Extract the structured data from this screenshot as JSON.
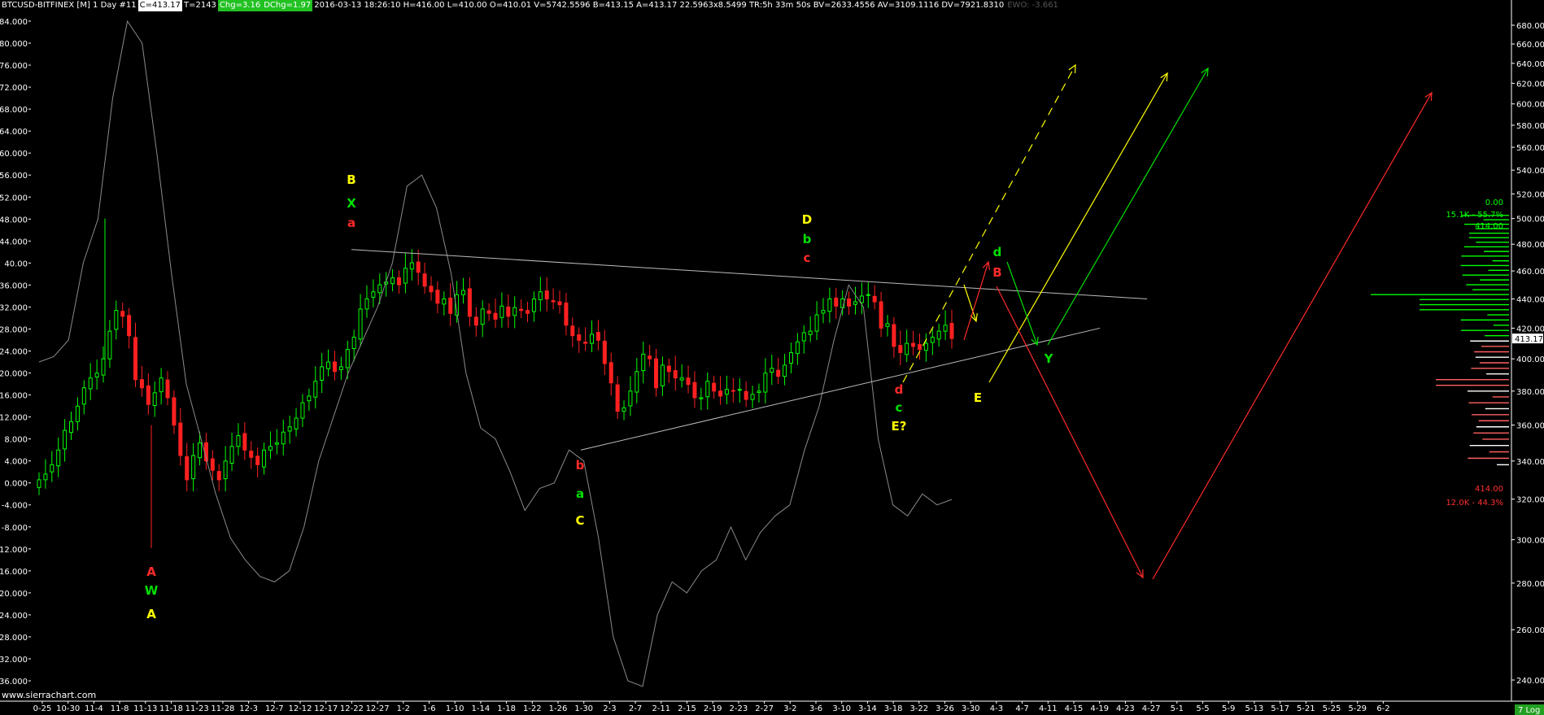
{
  "header": {
    "symbol": "BTCUSD-BITFINEX [M]  1 Day  #11",
    "close": "C=413.17",
    "trades": "T=2143",
    "chg": "Chg=3.16",
    "dchg": "DChg=1.97",
    "rest": "2016-03-13 18:26:10 H=416.00 L=410.00 O=410.01 V=5742.5596 B=413.15 A=413.17 22.5963x8.5499 TR:5h 33m 50s BV=2633.4556 AV=3109.1116 DV=7921.8310",
    "ewo": "EWO: -3.661"
  },
  "watermark": "www.sierrachart.com",
  "corner_badge": "7 Log",
  "price_badge": "413.17",
  "chart_data": {
    "type": "candlestick",
    "price_axis": {
      "side": "right",
      "min": 240,
      "max": 680,
      "ticks": [
        240,
        260,
        280,
        300,
        320,
        340,
        360,
        380,
        400,
        420,
        440,
        460,
        480,
        500,
        520,
        540,
        560,
        580,
        600,
        620,
        640,
        660,
        680
      ]
    },
    "osc_axis": {
      "side": "left",
      "min": -36,
      "max": 84,
      "ticks": [
        -36,
        -32,
        -28,
        -24,
        -20,
        -16,
        -12,
        -8,
        -4,
        0,
        4,
        8,
        12,
        16,
        20,
        24,
        28,
        32,
        36,
        40,
        44,
        48,
        52,
        56,
        60,
        64,
        68,
        72,
        76,
        80,
        84
      ],
      "tick_labels": [
        "-36.000",
        "-32.000",
        "-28.000",
        "-24.000",
        "-20.000",
        "-16.000",
        "-12.000",
        "-8.000",
        "-4.000",
        "0.000",
        "4.000",
        "8.000",
        "12.000",
        "16.000",
        "20.000",
        "24.000",
        "28.000",
        "32.000",
        "36.000",
        "40.00",
        "44.000",
        "48.000",
        "52.000",
        "56.000",
        "60.000",
        "64.000",
        "68.000",
        "72.000",
        "76.000",
        "80.000",
        "84.000"
      ]
    },
    "x_labels": [
      "0-25",
      "10-30",
      "11-4",
      "11-8",
      "11-13",
      "11-18",
      "11-23",
      "11-28",
      "12-3",
      "12-7",
      "12-12",
      "12-17",
      "12-22",
      "12-27",
      "1-2",
      "1-6",
      "1-10",
      "1-14",
      "1-18",
      "1-22",
      "1-26",
      "1-30",
      "2-3",
      "2-7",
      "2-11",
      "2-15",
      "2-19",
      "2-23",
      "2-27",
      "3-2",
      "3-6",
      "3-10",
      "3-14",
      "3-18",
      "3-22",
      "3-26",
      "3-30",
      "4-3",
      "4-7",
      "4-11",
      "4-15",
      "4-19",
      "4-23",
      "4-27",
      "5-1",
      "5-5",
      "5-9",
      "5-13",
      "5-17",
      "5-21",
      "5-25",
      "5-29",
      "6-2"
    ],
    "closes": [
      330,
      333,
      338,
      346,
      357,
      362,
      371,
      382,
      388,
      391,
      400,
      418,
      432,
      428,
      415,
      387,
      382,
      372,
      379,
      388,
      376,
      360,
      343,
      330,
      343,
      350,
      340,
      335,
      330,
      340,
      348,
      354,
      346,
      342,
      338,
      346,
      348,
      350,
      356,
      359,
      364,
      373,
      377,
      386,
      395,
      398,
      392,
      395,
      406,
      414,
      433,
      440,
      445,
      450,
      452,
      455,
      450,
      462,
      466,
      459,
      449,
      445,
      437,
      440,
      430,
      443,
      446,
      428,
      422,
      433,
      430,
      426,
      435,
      428,
      434,
      432,
      430,
      440,
      445,
      440,
      438,
      436,
      422,
      415,
      412,
      410,
      416,
      412,
      397,
      385,
      368,
      370,
      380,
      392,
      403,
      400,
      382,
      396,
      392,
      388,
      388,
      384,
      376,
      376,
      386,
      380,
      377,
      381,
      380,
      381,
      375,
      378,
      380,
      391,
      394,
      389,
      396,
      404,
      411,
      417,
      418,
      429,
      432,
      440,
      435,
      440,
      435,
      438,
      442,
      443,
      438,
      420,
      423,
      408,
      404,
      410,
      408,
      406,
      410,
      414,
      418,
      422,
      413.17
    ],
    "volume_profile": {
      "max_price": 414.0,
      "up_pct": "15.1K - 55.7%",
      "down_pct": "12.0K - 44.3%",
      "zero": "0.00",
      "bottom_price": "414.00"
    },
    "wave_labels": [
      {
        "text": "A",
        "color": "red"
      },
      {
        "text": "W",
        "color": "green"
      },
      {
        "text": "A",
        "color": "yellow"
      },
      {
        "text": "B",
        "color": "yellow"
      },
      {
        "text": "X",
        "color": "green"
      },
      {
        "text": "a",
        "color": "red"
      },
      {
        "text": "b",
        "color": "red"
      },
      {
        "text": "a",
        "color": "green"
      },
      {
        "text": "C",
        "color": "yellow"
      },
      {
        "text": "D",
        "color": "yellow"
      },
      {
        "text": "b",
        "color": "green"
      },
      {
        "text": "c",
        "color": "red"
      },
      {
        "text": "d",
        "color": "red"
      },
      {
        "text": "c",
        "color": "green"
      },
      {
        "text": "E?",
        "color": "yellow"
      },
      {
        "text": "E",
        "color": "yellow"
      },
      {
        "text": "d",
        "color": "green"
      },
      {
        "text": "B",
        "color": "red"
      },
      {
        "text": "Y",
        "color": "green"
      }
    ]
  },
  "colors": {
    "up": "#00ff00",
    "down": "#ff2020",
    "red": "#ff2a2a",
    "green": "#00e000",
    "yellow": "#ffff00",
    "line": "#808080"
  }
}
